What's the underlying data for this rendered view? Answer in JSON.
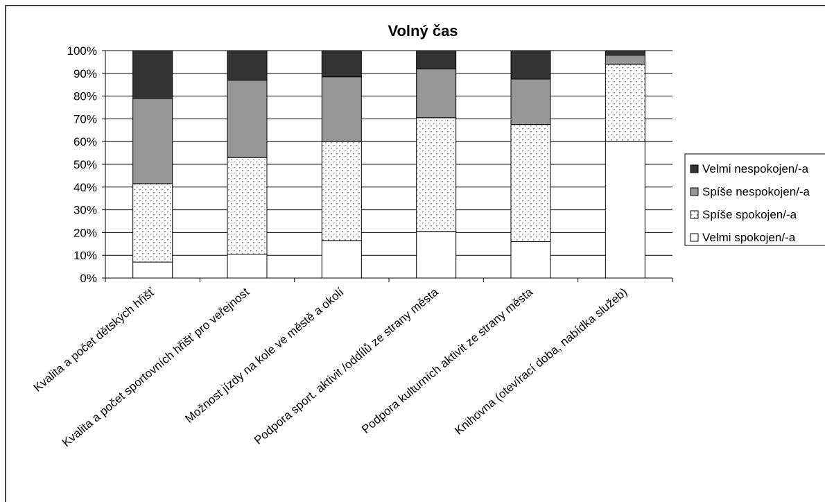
{
  "chart_data": {
    "type": "bar",
    "stacked": true,
    "percent": true,
    "title": "Volný čas",
    "categories": [
      "Kvalita a počet dětských hřišť",
      "Kvalita a počet sportovních hřišť pro veřejnost",
      "Možnost jízdy na kole ve městě a okolí",
      "Podpora sport. aktivit /oddílů ze strany města",
      "Podpora kulturních aktivit ze strany města",
      "Knihovna (otevírací doba, nabídka služeb)"
    ],
    "series": [
      {
        "name": "Velmi spokojen/-a",
        "values": [
          7,
          10.5,
          16.5,
          20.5,
          16,
          60
        ],
        "fill": "#ffffff",
        "pattern": "none"
      },
      {
        "name": "Spíše spokojen/-a",
        "values": [
          34.5,
          42.5,
          43.5,
          50,
          51.5,
          34
        ],
        "fill": "#ffffff",
        "pattern": "dots"
      },
      {
        "name": "Spíše nespokojen/-a",
        "values": [
          37.5,
          34,
          28.5,
          21.5,
          20,
          4
        ],
        "fill": "#969696",
        "pattern": "none"
      },
      {
        "name": "Velmi nespokojen/-a",
        "values": [
          21,
          13,
          11.5,
          8,
          12.5,
          2
        ],
        "fill": "#333333",
        "pattern": "none"
      }
    ],
    "ylim": [
      0,
      100
    ],
    "yticks": [
      "0%",
      "10%",
      "20%",
      "30%",
      "40%",
      "50%",
      "60%",
      "70%",
      "80%",
      "90%",
      "100%"
    ],
    "legend_order": [
      "Velmi nespokojen/-a",
      "Spíše nespokojen/-a",
      "Spíše spokojen/-a",
      "Velmi spokojen/-a"
    ],
    "legend_position": "right",
    "grid": true
  }
}
